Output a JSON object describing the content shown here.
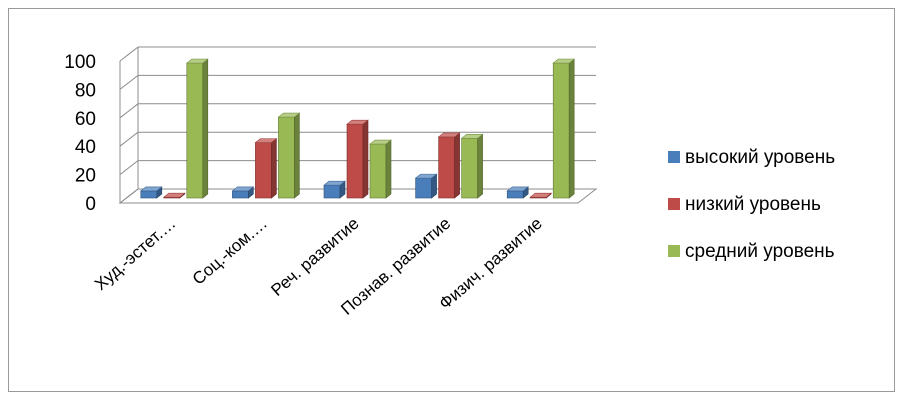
{
  "chart_data": {
    "type": "bar",
    "categories": [
      "Худ.-эстет.…",
      "Соц.-ком.…",
      "Реч. развитие",
      "Познав. развитие",
      "Физич. развитие"
    ],
    "series": [
      {
        "name": "высокий уровень",
        "values": [
          5,
          5,
          9,
          14,
          5
        ],
        "color": "#4a7ebb"
      },
      {
        "name": "низкий уровень",
        "values": [
          0,
          39,
          52,
          43,
          0
        ],
        "color": "#be4b48"
      },
      {
        "name": "средний уровень",
        "values": [
          95,
          57,
          38,
          42,
          95
        ],
        "color": "#98b954"
      }
    ],
    "yticks": [
      "0",
      "20",
      "40",
      "60",
      "80",
      "100"
    ],
    "ylim": [
      0,
      100
    ],
    "legend": "right",
    "grid": true
  }
}
